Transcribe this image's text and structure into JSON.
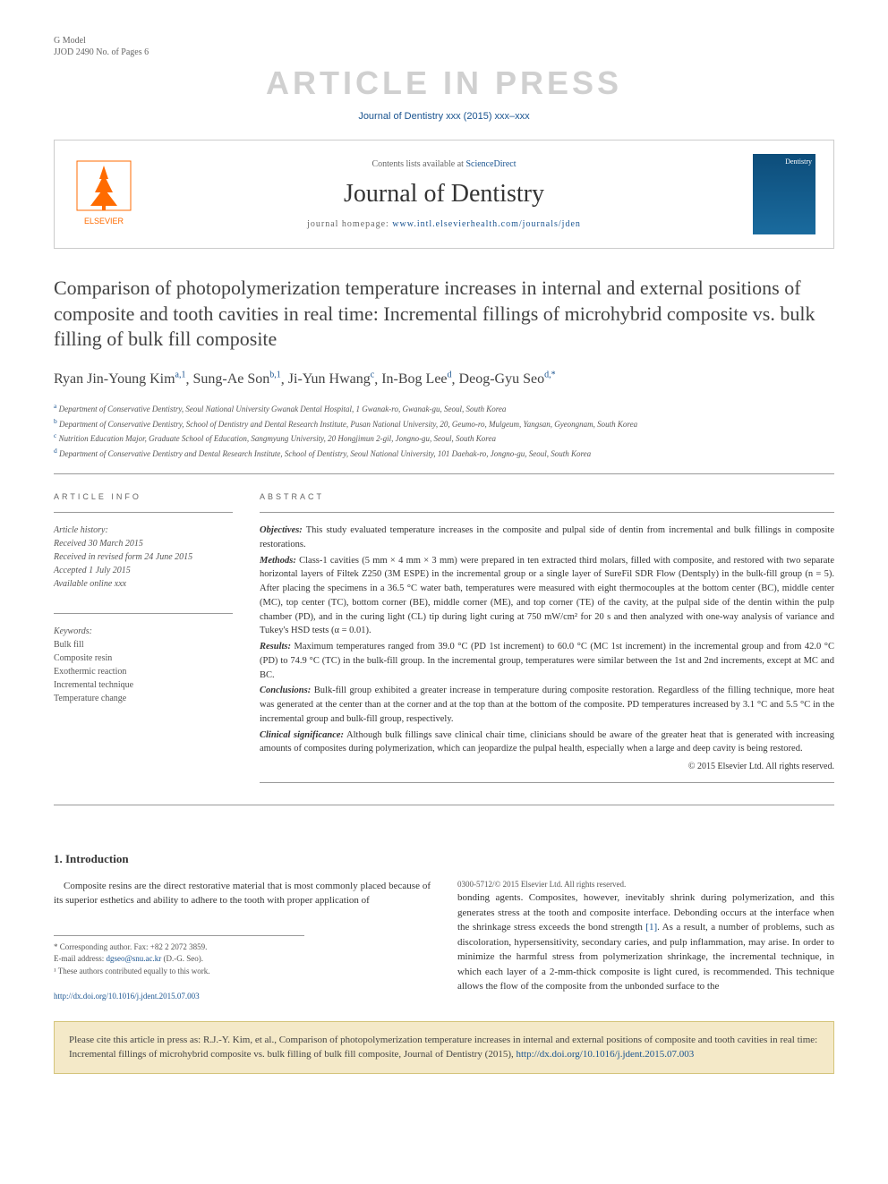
{
  "gmodel": {
    "line1": "G Model",
    "line2": "JJOD 2490 No. of Pages 6"
  },
  "watermark": "ARTICLE IN PRESS",
  "citation_top": "Journal of Dentistry xxx (2015) xxx–xxx",
  "header": {
    "contents_prefix": "Contents lists available at ",
    "contents_link": "ScienceDirect",
    "journal_name": "Journal of Dentistry",
    "homepage_prefix": "journal homepage: ",
    "homepage_link": "www.intl.elsevierhealth.com/journals/jden",
    "cover_label": "Dentistry",
    "elsevier_label": "ELSEVIER"
  },
  "title": "Comparison of photopolymerization temperature increases in internal and external positions of composite and tooth cavities in real time: Incremental fillings of microhybrid composite vs. bulk filling of bulk fill composite",
  "authors": [
    {
      "name": "Ryan Jin-Young Kim",
      "sup": "a,1"
    },
    {
      "name": "Sung-Ae Son",
      "sup": "b,1"
    },
    {
      "name": "Ji-Yun Hwang",
      "sup": "c"
    },
    {
      "name": "In-Bog Lee",
      "sup": "d"
    },
    {
      "name": "Deog-Gyu Seo",
      "sup": "d,*"
    }
  ],
  "affiliations": [
    {
      "sup": "a",
      "text": "Department of Conservative Dentistry, Seoul National University Gwanak Dental Hospital, 1 Gwanak-ro, Gwanak-gu, Seoul, South Korea"
    },
    {
      "sup": "b",
      "text": "Department of Conservative Dentistry, School of Dentistry and Dental Research Institute, Pusan National University, 20, Geumo-ro, Mulgeum, Yangsan, Gyeongnam, South Korea"
    },
    {
      "sup": "c",
      "text": "Nutrition Education Major, Graduate School of Education, Sangmyung University, 20 Hongjimun 2-gil, Jongno-gu, Seoul, South Korea"
    },
    {
      "sup": "d",
      "text": "Department of Conservative Dentistry and Dental Research Institute, School of Dentistry, Seoul National University, 101 Daehak-ro, Jongno-gu, Seoul, South Korea"
    }
  ],
  "article_info": {
    "heading": "ARTICLE INFO",
    "history_label": "Article history:",
    "history": [
      "Received 30 March 2015",
      "Received in revised form 24 June 2015",
      "Accepted 1 July 2015",
      "Available online xxx"
    ],
    "keywords_label": "Keywords:",
    "keywords": [
      "Bulk fill",
      "Composite resin",
      "Exothermic reaction",
      "Incremental technique",
      "Temperature change"
    ]
  },
  "abstract": {
    "heading": "ABSTRACT",
    "sections": [
      {
        "label": "Objectives:",
        "text": "This study evaluated temperature increases in the composite and pulpal side of dentin from incremental and bulk fillings in composite restorations."
      },
      {
        "label": "Methods:",
        "text": "Class-1 cavities (5 mm × 4 mm × 3 mm) were prepared in ten extracted third molars, filled with composite, and restored with two separate horizontal layers of Filtek Z250 (3M ESPE) in the incremental group or a single layer of SureFil SDR Flow (Dentsply) in the bulk-fill group (n = 5). After placing the specimens in a 36.5 °C water bath, temperatures were measured with eight thermocouples at the bottom center (BC), middle center (MC), top center (TC), bottom corner (BE), middle corner (ME), and top corner (TE) of the cavity, at the pulpal side of the dentin within the pulp chamber (PD), and in the curing light (CL) tip during light curing at 750 mW/cm² for 20 s and then analyzed with one-way analysis of variance and Tukey's HSD tests (α = 0.01)."
      },
      {
        "label": "Results:",
        "text": "Maximum temperatures ranged from 39.0 °C (PD 1st increment) to 60.0 °C (MC 1st increment) in the incremental group and from 42.0 °C (PD) to 74.9 °C (TC) in the bulk-fill group. In the incremental group, temperatures were similar between the 1st and 2nd increments, except at MC and BC."
      },
      {
        "label": "Conclusions:",
        "text": "Bulk-fill group exhibited a greater increase in temperature during composite restoration. Regardless of the filling technique, more heat was generated at the center than at the corner and at the top than at the bottom of the composite. PD temperatures increased by 3.1 °C and 5.5 °C in the incremental group and bulk-fill group, respectively."
      },
      {
        "label": "Clinical significance:",
        "text": "Although bulk fillings save clinical chair time, clinicians should be aware of the greater heat that is generated with increasing amounts of composites during polymerization, which can jeopardize the pulpal health, especially when a large and deep cavity is being restored."
      }
    ],
    "copyright": "© 2015 Elsevier Ltd. All rights reserved."
  },
  "introduction": {
    "heading": "1. Introduction",
    "para1": "Composite resins are the direct restorative material that is most commonly placed because of its superior esthetics and ability to adhere to the tooth with proper application of",
    "para2_a": "bonding agents. Composites, however, inevitably shrink during polymerization, and this generates stress at the tooth and composite interface. Debonding occurs at the interface when the shrinkage stress exceeds the bond strength ",
    "ref1": "[1]",
    "para2_b": ". As a result, a number of problems, such as discoloration, hypersensitivity, secondary caries, and pulp inflammation, may arise. In order to minimize the harmful stress from polymerization shrinkage, the incremental technique, in which each layer of a 2-mm-thick composite is light cured, is recommended. This technique allows the flow of the composite from the unbonded surface to the"
  },
  "footnotes": {
    "corresponding": "* Corresponding author. Fax: +82 2 2072 3859.",
    "email_label": "E-mail address: ",
    "email": "dgseo@snu.ac.kr",
    "email_suffix": " (D.-G. Seo).",
    "equal": "¹ These authors contributed equally to this work."
  },
  "doi": {
    "link": "http://dx.doi.org/10.1016/j.jdent.2015.07.003",
    "issn": "0300-5712/© 2015 Elsevier Ltd. All rights reserved."
  },
  "citation_box": {
    "text_a": "Please cite this article in press as: R.J.-Y. Kim, et al., Comparison of photopolymerization temperature increases in internal and external positions of composite and tooth cavities in real time: Incremental fillings of microhybrid composite vs. bulk filling of bulk fill composite, Journal of Dentistry (2015), ",
    "link": "http://dx.doi.org/10.1016/j.jdent.2015.07.003"
  },
  "colors": {
    "link_color": "#1a5490",
    "watermark_color": "#d0d0d0",
    "elsevier_orange": "#ff6b00",
    "citation_bg": "#f4e9c8",
    "citation_border": "#d4c47a"
  }
}
